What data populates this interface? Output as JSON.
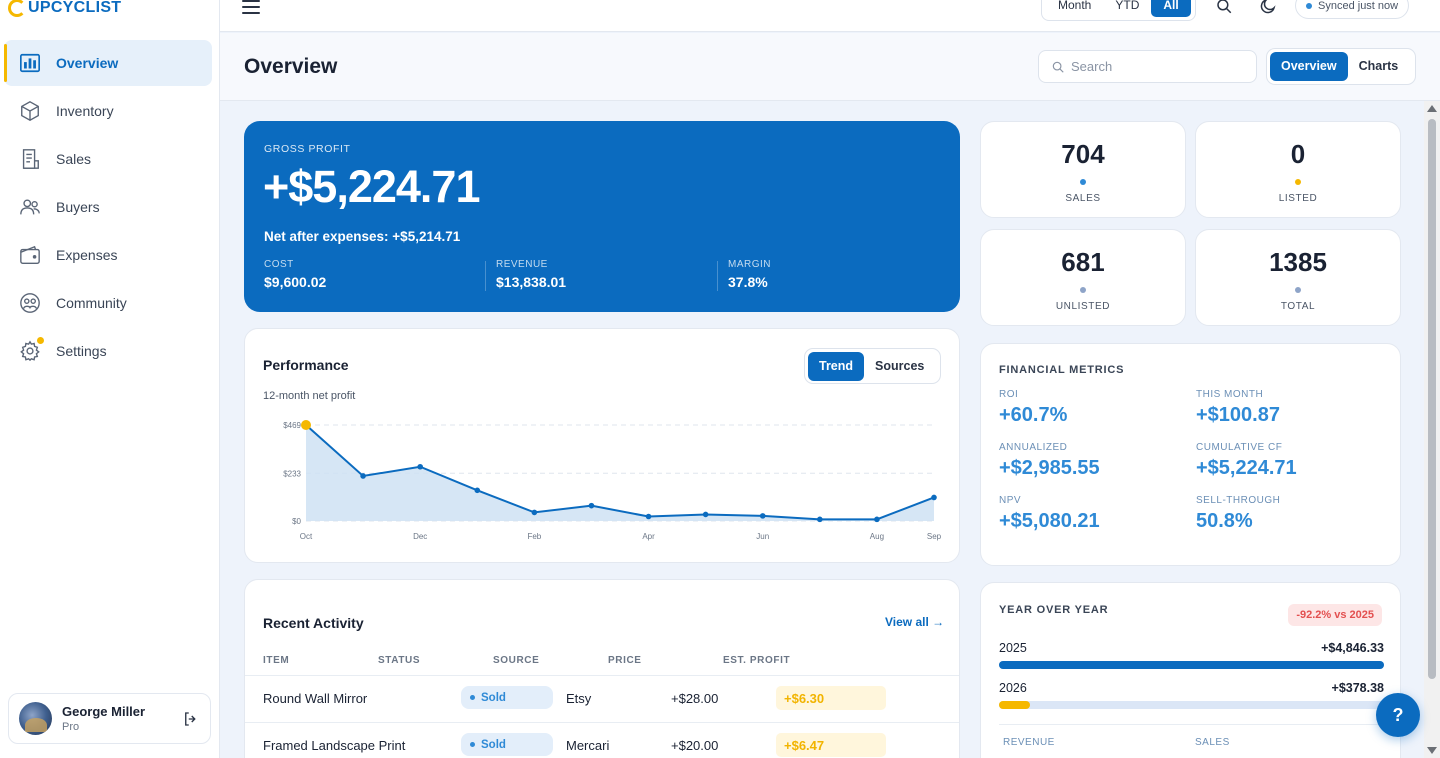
{
  "app": {
    "logo": "UPCYCLIST"
  },
  "sidebar": {
    "items": [
      {
        "label": "Overview",
        "icon": "bar-chart-icon"
      },
      {
        "label": "Inventory",
        "icon": "box-icon"
      },
      {
        "label": "Sales",
        "icon": "receipt-icon"
      },
      {
        "label": "Buyers",
        "icon": "users-icon"
      },
      {
        "label": "Expenses",
        "icon": "wallet-icon"
      },
      {
        "label": "Community",
        "icon": "community-icon"
      },
      {
        "label": "Settings",
        "icon": "gear-icon"
      }
    ],
    "user": {
      "name": "George Miller",
      "plan": "Pro"
    }
  },
  "topbar": {
    "periods": [
      "Month",
      "YTD",
      "All"
    ],
    "active_period": "All",
    "sync": "Synced just now"
  },
  "header": {
    "title": "Overview",
    "search_placeholder": "Search",
    "views": [
      "Overview",
      "Charts"
    ]
  },
  "gross": {
    "label": "GROSS PROFIT",
    "amount": "+$5,224.71",
    "net": "Net after expenses: +$5,214.71",
    "cost_label": "COST",
    "cost": "$9,600.02",
    "revenue_label": "REVENUE",
    "revenue": "$13,838.01",
    "margin_label": "MARGIN",
    "margin": "37.8%"
  },
  "stats": [
    {
      "value": "704",
      "label": "SALES",
      "dot": "#2f8ad6"
    },
    {
      "value": "0",
      "label": "LISTED",
      "dot": "#f5b800"
    },
    {
      "value": "681",
      "label": "UNLISTED",
      "dot": "#8ea4c8"
    },
    {
      "value": "1385",
      "label": "TOTAL",
      "dot": "#8ea4c8"
    }
  ],
  "performance": {
    "title": "Performance",
    "subtitle": "12-month net profit",
    "tabs": [
      "Trend",
      "Sources"
    ]
  },
  "chart_data": {
    "type": "area",
    "x": [
      "Oct",
      "Nov",
      "Dec",
      "Jan",
      "Feb",
      "Mar",
      "Apr",
      "May",
      "Jun",
      "Jul",
      "Aug",
      "Sep"
    ],
    "x_tick_labels": [
      "Oct",
      "Dec",
      "Feb",
      "Apr",
      "Jun",
      "Aug",
      "Sep"
    ],
    "values": [
      469,
      220,
      265,
      150,
      42,
      75,
      22,
      32,
      25,
      8,
      8,
      115
    ],
    "y_ticks": [
      0,
      233,
      469
    ],
    "y_tick_labels": [
      "$0",
      "$233",
      "$469"
    ],
    "ylim": [
      0,
      469
    ],
    "grid": true,
    "line_color": "#0b6bbf",
    "highlight_color": "#f5b800"
  },
  "financial": {
    "title": "FINANCIAL METRICS",
    "metrics": [
      {
        "label": "ROI",
        "value": "+60.7%"
      },
      {
        "label": "THIS MONTH",
        "value": "+$100.87"
      },
      {
        "label": "ANNUALIZED",
        "value": "+$2,985.55"
      },
      {
        "label": "CUMULATIVE CF",
        "value": "+$5,224.71"
      },
      {
        "label": "NPV",
        "value": "+$5,080.21"
      },
      {
        "label": "SELL-THROUGH",
        "value": "50.8%"
      }
    ]
  },
  "activity": {
    "title": "Recent Activity",
    "view_all": "View all →",
    "columns": [
      "ITEM",
      "STATUS",
      "SOURCE",
      "PRICE",
      "EST. PROFIT"
    ],
    "rows": [
      {
        "item": "Round Wall Mirror",
        "status": "Sold",
        "source": "Etsy",
        "price": "+$28.00",
        "profit": "+$6.30"
      },
      {
        "item": "Framed Landscape Print",
        "status": "Sold",
        "source": "Mercari",
        "price": "+$20.00",
        "profit": "+$6.47"
      }
    ]
  },
  "yoy": {
    "title": "YEAR OVER YEAR",
    "badge": "-92.2% vs 2025",
    "rows": [
      {
        "year": "2025",
        "value": "+$4,846.33",
        "fill": 1.0,
        "color": "#0b6bbf"
      },
      {
        "year": "2026",
        "value": "+$378.38",
        "fill": 0.08,
        "color": "#f5b800"
      }
    ],
    "footer": [
      "REVENUE",
      "SALES"
    ]
  },
  "help": "?"
}
